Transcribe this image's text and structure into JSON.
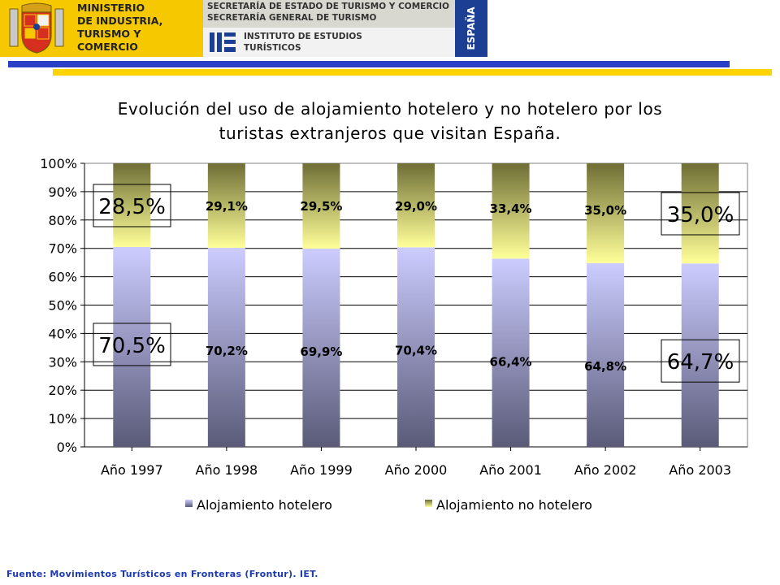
{
  "header": {
    "ministry_lines": [
      "MINISTERIO",
      "DE INDUSTRIA,",
      "TURISMO Y",
      "COMERCIO"
    ],
    "secretariat_lines": [
      "SECRETARÍA DE ESTADO DE TURISMO Y COMERCIO",
      "SECRETARÍA GENERAL DE TURISMO"
    ],
    "institute_lines": [
      "INSTITUTO DE ESTUDIOS",
      "TURÍSTICOS"
    ],
    "country_tab": "ESPAÑA",
    "colors": {
      "ministry_bg": "#f6c800",
      "country_bg": "#1c3f94",
      "rule_blue": "#2b3fc6",
      "rule_yellow": "#ffd400"
    }
  },
  "chart_data": {
    "type": "bar",
    "stacked": true,
    "percent": true,
    "title_lines": [
      "Evolución del uso de alojamiento hotelero y no hotelero por los",
      "turistas extranjeros que visitan España."
    ],
    "categories": [
      "Año 1997",
      "Año 1998",
      "Año 1999",
      "Año 2000",
      "Año 2001",
      "Año 2002",
      "Año 2003"
    ],
    "series": [
      {
        "name": "Alojamiento hotelero",
        "values": [
          70.5,
          70.2,
          69.9,
          70.4,
          66.4,
          64.8,
          64.7
        ],
        "labels": [
          "70,5%",
          "70,2%",
          "69,9%",
          "70,4%",
          "66,4%",
          "64,8%",
          "64,7%"
        ],
        "gradient": [
          "#ccccff",
          "#5a5a78"
        ]
      },
      {
        "name": "Alojamiento no hotelero",
        "values": [
          28.5,
          29.1,
          29.5,
          29.0,
          33.4,
          35.0,
          35.0
        ],
        "labels": [
          "28,5%",
          "29,1%",
          "29,5%",
          "29,0%",
          "33,4%",
          "35,0%",
          "35,0%"
        ],
        "gradient": [
          "#6e6e36",
          "#ffff99"
        ]
      }
    ],
    "yticks": [
      "100%",
      "90%",
      "80%",
      "70%",
      "60%",
      "50%",
      "40%",
      "30%",
      "20%",
      "10%",
      "0%"
    ],
    "ylim": [
      0,
      100
    ],
    "grid": true,
    "highlighted_categories": [
      0,
      6
    ],
    "legend": {
      "placement": "bottom"
    }
  },
  "footer": {
    "source": "Fuente: Movimientos Turísticos en Fronteras (Frontur). IET."
  }
}
